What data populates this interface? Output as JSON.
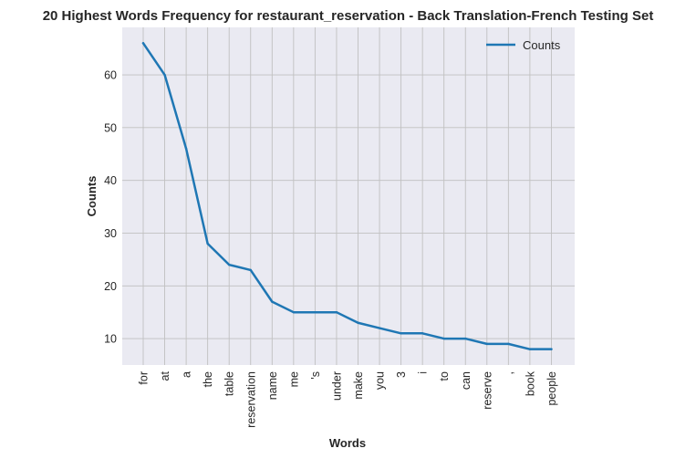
{
  "chart_data": {
    "type": "line",
    "title": "20 Highest Words Frequency for restaurant_reservation - Back Translation-French Testing Set",
    "xlabel": "Words",
    "ylabel": "Counts",
    "categories": [
      "for",
      "at",
      "a",
      "the",
      "table",
      "reservation",
      "name",
      "me",
      "'s",
      "under",
      "make",
      "you",
      "3",
      "i",
      "to",
      "can",
      "reserve",
      ",",
      "book",
      "people"
    ],
    "series": [
      {
        "name": "Counts",
        "values": [
          66,
          60,
          46,
          28,
          24,
          23,
          17,
          15,
          15,
          15,
          13,
          12,
          11,
          11,
          10,
          10,
          9,
          9,
          8,
          8
        ]
      }
    ],
    "ylim": [
      5,
      69
    ],
    "yticks": [
      10,
      20,
      30,
      40,
      50,
      60
    ],
    "grid": true,
    "legend_position": "top-right",
    "colors": {
      "line": "#1f77b4",
      "plot_background": "#eaeaf2",
      "grid": "#c0c0c0",
      "text": "#262626"
    }
  }
}
